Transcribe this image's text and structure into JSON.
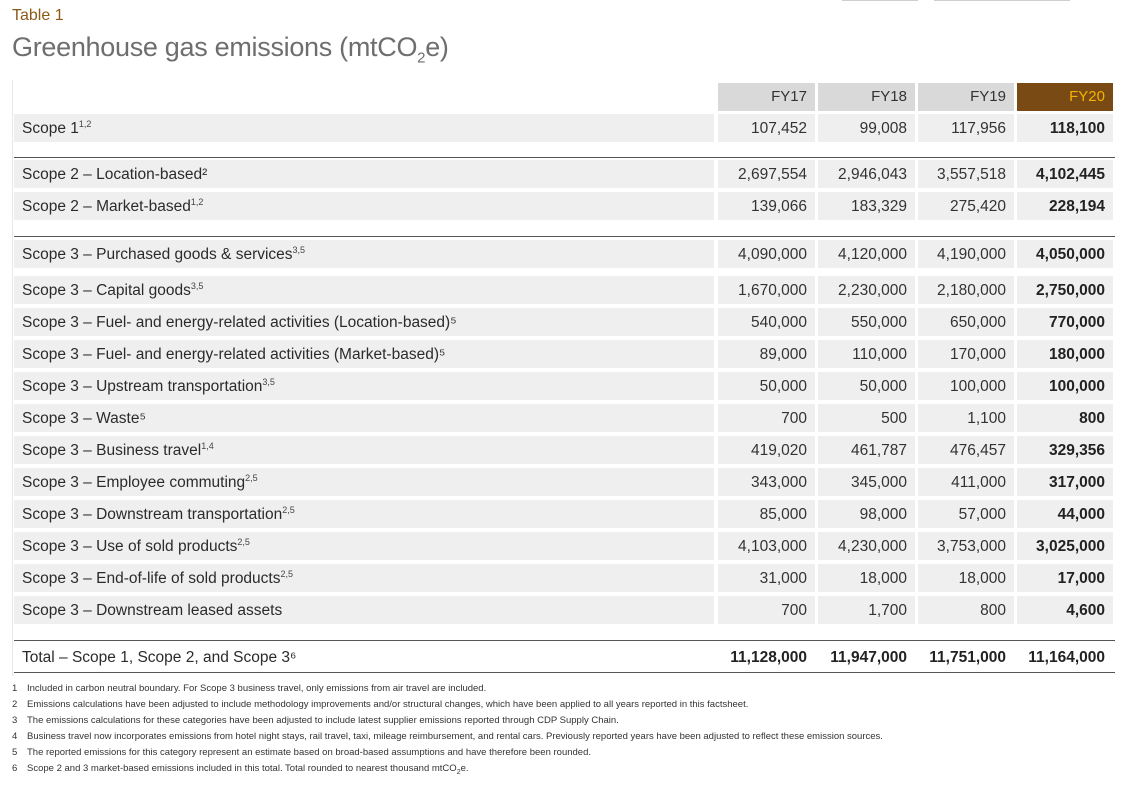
{
  "eyebrow": "Table 1",
  "title": "Greenhouse gas emissions (mtCO",
  "title_sub": "2",
  "title_end": "e)",
  "years": [
    "FY17",
    "FY18",
    "FY19",
    "FY20"
  ],
  "groups": [
    [
      {
        "label": "Scope 1",
        "sup": "1,2",
        "values": [
          "107,452",
          "99,008",
          "117,956",
          "118,100"
        ]
      }
    ],
    [
      {
        "label": "Scope 2 – Location-based²",
        "sup": "",
        "values": [
          "2,697,554",
          "2,946,043",
          "3,557,518",
          "4,102,445"
        ]
      },
      {
        "label": "Scope 2 – Market-based",
        "sup": "1,2",
        "values": [
          "139,066",
          "183,329",
          "275,420",
          "228,194"
        ]
      }
    ],
    [
      {
        "label": "Scope 3 – Purchased goods & services",
        "sup": "3,5",
        "values": [
          "4,090,000",
          "4,120,000",
          "4,190,000",
          "4,050,000"
        ]
      },
      {
        "label": "Scope 3 – Capital goods",
        "sup": "3,5",
        "values": [
          "1,670,000",
          "2,230,000",
          "2,180,000",
          "2,750,000"
        ]
      },
      {
        "label": "Scope 3 – Fuel- and energy-related activities (Location-based)⁵",
        "sup": "",
        "values": [
          "540,000",
          "550,000",
          "650,000",
          "770,000"
        ]
      },
      {
        "label": "Scope 3 – Fuel- and energy-related activities (Market-based)⁵",
        "sup": "",
        "values": [
          "89,000",
          "110,000",
          "170,000",
          "180,000"
        ]
      },
      {
        "label": "Scope 3 – Upstream transportation",
        "sup": "3,5",
        "values": [
          "50,000",
          "50,000",
          "100,000",
          "100,000"
        ]
      },
      {
        "label": "Scope 3 – Waste⁵",
        "sup": "",
        "values": [
          "700",
          "500",
          "1,100",
          "800"
        ]
      },
      {
        "label": "Scope 3 – Business travel",
        "sup": "1,4",
        "values": [
          "419,020",
          "461,787",
          "476,457",
          "329,356"
        ]
      },
      {
        "label": "Scope 3 – Employee commuting",
        "sup": "2,5",
        "values": [
          "343,000",
          "345,000",
          "411,000",
          "317,000"
        ]
      },
      {
        "label": "Scope 3 – Downstream transportation",
        "sup": "2,5",
        "values": [
          "85,000",
          "98,000",
          "57,000",
          "44,000"
        ]
      },
      {
        "label": "Scope 3 – Use of sold products",
        "sup": "2,5",
        "values": [
          "4,103,000",
          "4,230,000",
          "3,753,000",
          "3,025,000"
        ]
      },
      {
        "label": "Scope 3 – End-of-life of sold products",
        "sup": "2,5",
        "values": [
          "31,000",
          "18,000",
          "18,000",
          "17,000"
        ]
      },
      {
        "label": "Scope 3 – Downstream leased assets",
        "sup": "",
        "values": [
          "700",
          "1,700",
          "800",
          "4,600"
        ]
      }
    ]
  ],
  "total": {
    "label": "Total – Scope 1, Scope 2, and Scope 3⁶",
    "values": [
      "11,128,000",
      "11,947,000",
      "11,751,000",
      "11,164,000"
    ]
  },
  "footnotes": [
    {
      "n": "1",
      "text": "Included in carbon neutral boundary. For Scope 3 business travel, only emissions from air travel are included."
    },
    {
      "n": "2",
      "text": "Emissions calculations have been adjusted to include methodology improvements and/or structural changes, which have been applied to all years reported in this factsheet."
    },
    {
      "n": "3",
      "text": "The emissions calculations for these categories have been adjusted to include latest supplier emissions reported through CDP Supply Chain."
    },
    {
      "n": "4",
      "text": "Business travel now incorporates emissions from hotel night stays, rail travel, taxi, mileage reimbursement, and rental cars. Previously reported years have been adjusted to reflect these emission sources."
    },
    {
      "n": "5",
      "text": "The reported emissions for this category represent an estimate based on broad-based assumptions and have therefore been rounded."
    },
    {
      "n": "6",
      "text": "Scope 2 and 3 market-based emissions included in this total. Total rounded to nearest thousand mtCO",
      "sub": "2",
      "end": "e."
    }
  ]
}
